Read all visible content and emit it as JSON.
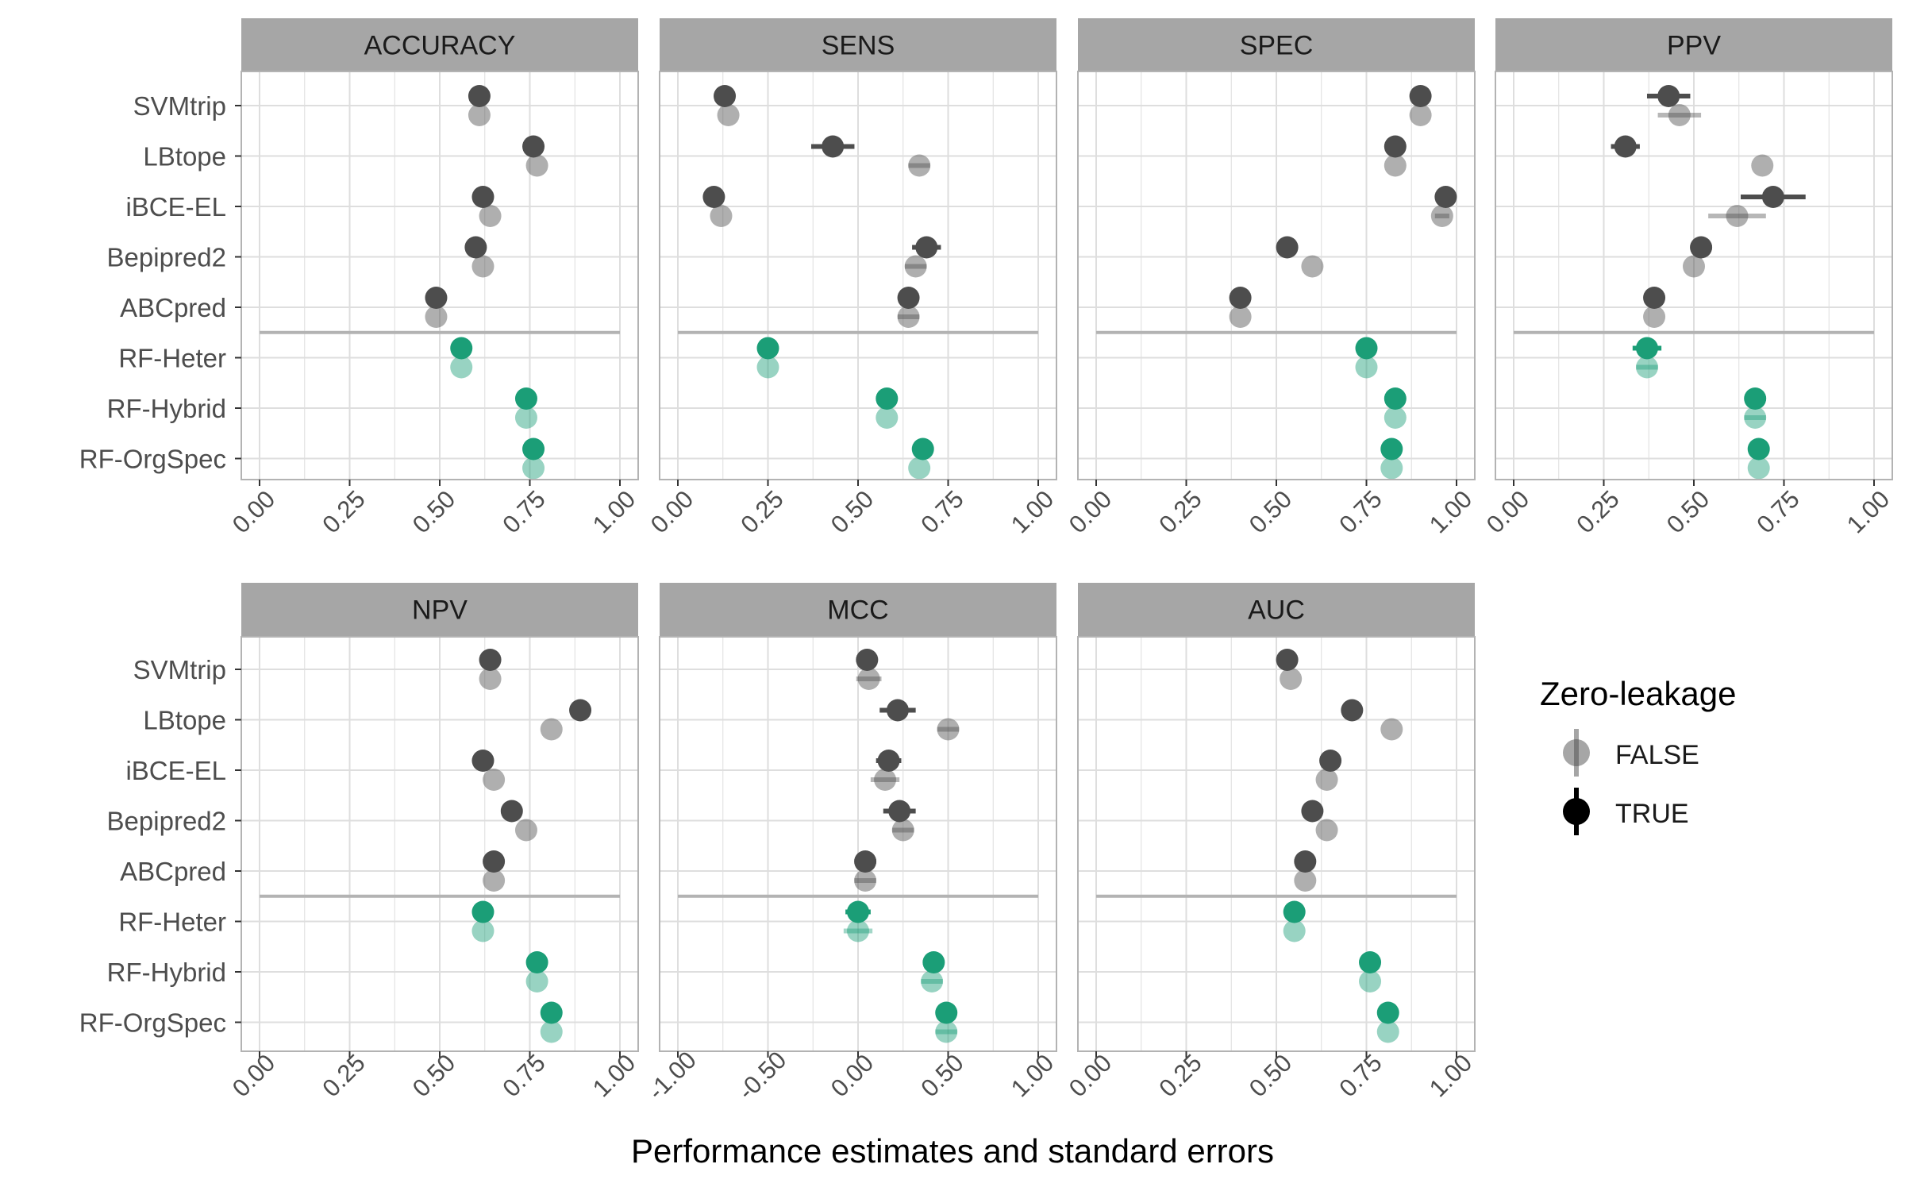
{
  "chart_data": {
    "type": "scatter",
    "xlabel": "Performance estimates and standard errors",
    "categories": [
      "SVMtrip",
      "LBtope",
      "iBCE-EL",
      "Bepipred2",
      "ABCpred",
      "RF-Heter",
      "RF-Hybrid",
      "RF-OrgSpec"
    ],
    "groups": {
      "reference": [
        "SVMtrip",
        "LBtope",
        "iBCE-EL",
        "Bepipred2",
        "ABCpred"
      ],
      "proposed": [
        "RF-Heter",
        "RF-Hybrid",
        "RF-OrgSpec"
      ]
    },
    "colors": {
      "reference": "#4d4d4d",
      "proposed": "#1b9e77",
      "strip": "#a6a6a6",
      "grid": "#dedede"
    },
    "legend": {
      "title": "Zero-leakage",
      "entries": [
        "FALSE",
        "TRUE"
      ],
      "position": "right"
    },
    "panels": [
      {
        "name": "ACCURACY",
        "xlim": [
          0,
          1
        ],
        "ticks": [
          "0.00",
          "0.25",
          "0.50",
          "0.75",
          "1.00"
        ],
        "true": [
          {
            "v": 0.61,
            "se": 0.0
          },
          {
            "v": 0.76,
            "se": 0.0
          },
          {
            "v": 0.62,
            "se": 0.0
          },
          {
            "v": 0.6,
            "se": 0.0
          },
          {
            "v": 0.49,
            "se": 0.0
          },
          {
            "v": 0.56,
            "se": 0.0
          },
          {
            "v": 0.74,
            "se": 0.0
          },
          {
            "v": 0.76,
            "se": 0.0
          }
        ],
        "false": [
          {
            "v": 0.61,
            "se": 0.0
          },
          {
            "v": 0.77,
            "se": 0.0
          },
          {
            "v": 0.64,
            "se": 0.0
          },
          {
            "v": 0.62,
            "se": 0.0
          },
          {
            "v": 0.49,
            "se": 0.0
          },
          {
            "v": 0.56,
            "se": 0.0
          },
          {
            "v": 0.74,
            "se": 0.0
          },
          {
            "v": 0.76,
            "se": 0.0
          }
        ]
      },
      {
        "name": "SENS",
        "xlim": [
          0,
          1
        ],
        "ticks": [
          "0.00",
          "0.25",
          "0.50",
          "0.75",
          "1.00"
        ],
        "true": [
          {
            "v": 0.13,
            "se": 0.0
          },
          {
            "v": 0.43,
            "se": 0.06
          },
          {
            "v": 0.1,
            "se": 0.0
          },
          {
            "v": 0.69,
            "se": 0.04
          },
          {
            "v": 0.64,
            "se": 0.02
          },
          {
            "v": 0.25,
            "se": 0.0
          },
          {
            "v": 0.58,
            "se": 0.0
          },
          {
            "v": 0.68,
            "se": 0.0
          }
        ],
        "false": [
          {
            "v": 0.14,
            "se": 0.0
          },
          {
            "v": 0.67,
            "se": 0.03
          },
          {
            "v": 0.12,
            "se": 0.0
          },
          {
            "v": 0.66,
            "se": 0.03
          },
          {
            "v": 0.64,
            "se": 0.03
          },
          {
            "v": 0.25,
            "se": 0.0
          },
          {
            "v": 0.58,
            "se": 0.0
          },
          {
            "v": 0.67,
            "se": 0.0
          }
        ]
      },
      {
        "name": "SPEC",
        "xlim": [
          0,
          1
        ],
        "ticks": [
          "0.00",
          "0.25",
          "0.50",
          "0.75",
          "1.00"
        ],
        "true": [
          {
            "v": 0.9,
            "se": 0.0
          },
          {
            "v": 0.83,
            "se": 0.0
          },
          {
            "v": 0.97,
            "se": 0.0
          },
          {
            "v": 0.53,
            "se": 0.0
          },
          {
            "v": 0.4,
            "se": 0.0
          },
          {
            "v": 0.75,
            "se": 0.0
          },
          {
            "v": 0.83,
            "se": 0.0
          },
          {
            "v": 0.82,
            "se": 0.0
          }
        ],
        "false": [
          {
            "v": 0.9,
            "se": 0.0
          },
          {
            "v": 0.83,
            "se": 0.0
          },
          {
            "v": 0.96,
            "se": 0.02
          },
          {
            "v": 0.6,
            "se": 0.0
          },
          {
            "v": 0.4,
            "se": 0.0
          },
          {
            "v": 0.75,
            "se": 0.0
          },
          {
            "v": 0.83,
            "se": 0.0
          },
          {
            "v": 0.82,
            "se": 0.0
          }
        ]
      },
      {
        "name": "PPV",
        "xlim": [
          0,
          1
        ],
        "ticks": [
          "0.00",
          "0.25",
          "0.50",
          "0.75",
          "1.00"
        ],
        "true": [
          {
            "v": 0.43,
            "se": 0.06
          },
          {
            "v": 0.31,
            "se": 0.04
          },
          {
            "v": 0.72,
            "se": 0.09
          },
          {
            "v": 0.52,
            "se": 0.03
          },
          {
            "v": 0.39,
            "se": 0.0
          },
          {
            "v": 0.37,
            "se": 0.04
          },
          {
            "v": 0.67,
            "se": 0.03
          },
          {
            "v": 0.68,
            "se": 0.0
          }
        ],
        "false": [
          {
            "v": 0.46,
            "se": 0.06
          },
          {
            "v": 0.69,
            "se": 0.0
          },
          {
            "v": 0.62,
            "se": 0.08
          },
          {
            "v": 0.5,
            "se": 0.0
          },
          {
            "v": 0.39,
            "se": 0.0
          },
          {
            "v": 0.37,
            "se": 0.03
          },
          {
            "v": 0.67,
            "se": 0.03
          },
          {
            "v": 0.68,
            "se": 0.0
          }
        ]
      },
      {
        "name": "NPV",
        "xlim": [
          0,
          1
        ],
        "ticks": [
          "0.00",
          "0.25",
          "0.50",
          "0.75",
          "1.00"
        ],
        "true": [
          {
            "v": 0.64,
            "se": 0.0
          },
          {
            "v": 0.89,
            "se": 0.0
          },
          {
            "v": 0.62,
            "se": 0.0
          },
          {
            "v": 0.7,
            "se": 0.03
          },
          {
            "v": 0.65,
            "se": 0.0
          },
          {
            "v": 0.62,
            "se": 0.0
          },
          {
            "v": 0.77,
            "se": 0.0
          },
          {
            "v": 0.81,
            "se": 0.0
          }
        ],
        "false": [
          {
            "v": 0.64,
            "se": 0.0
          },
          {
            "v": 0.81,
            "se": 0.0
          },
          {
            "v": 0.65,
            "se": 0.0
          },
          {
            "v": 0.74,
            "se": 0.0
          },
          {
            "v": 0.65,
            "se": 0.0
          },
          {
            "v": 0.62,
            "se": 0.0
          },
          {
            "v": 0.77,
            "se": 0.0
          },
          {
            "v": 0.81,
            "se": 0.0
          }
        ]
      },
      {
        "name": "MCC",
        "xlim": [
          -1,
          1
        ],
        "ticks": [
          "-1.00",
          "-0.50",
          "0.00",
          "0.50",
          "1.00"
        ],
        "true": [
          {
            "v": 0.05,
            "se": 0.06
          },
          {
            "v": 0.22,
            "se": 0.1
          },
          {
            "v": 0.17,
            "se": 0.07
          },
          {
            "v": 0.23,
            "se": 0.09
          },
          {
            "v": 0.04,
            "se": 0.06
          },
          {
            "v": 0.0,
            "se": 0.07
          },
          {
            "v": 0.42,
            "se": 0.06
          },
          {
            "v": 0.49,
            "se": 0.06
          }
        ],
        "false": [
          {
            "v": 0.06,
            "se": 0.07
          },
          {
            "v": 0.5,
            "se": 0.06
          },
          {
            "v": 0.15,
            "se": 0.08
          },
          {
            "v": 0.25,
            "se": 0.06
          },
          {
            "v": 0.04,
            "se": 0.06
          },
          {
            "v": 0.0,
            "se": 0.08
          },
          {
            "v": 0.41,
            "se": 0.06
          },
          {
            "v": 0.49,
            "se": 0.06
          }
        ]
      },
      {
        "name": "AUC",
        "xlim": [
          0,
          1
        ],
        "ticks": [
          "0.00",
          "0.25",
          "0.50",
          "0.75",
          "1.00"
        ],
        "true": [
          {
            "v": 0.53,
            "se": 0.0
          },
          {
            "v": 0.71,
            "se": 0.03
          },
          {
            "v": 0.65,
            "se": 0.0
          },
          {
            "v": 0.6,
            "se": 0.0
          },
          {
            "v": 0.58,
            "se": 0.0
          },
          {
            "v": 0.55,
            "se": 0.0
          },
          {
            "v": 0.76,
            "se": 0.0
          },
          {
            "v": 0.81,
            "se": 0.0
          }
        ],
        "false": [
          {
            "v": 0.54,
            "se": 0.0
          },
          {
            "v": 0.82,
            "se": 0.0
          },
          {
            "v": 0.64,
            "se": 0.0
          },
          {
            "v": 0.64,
            "se": 0.0
          },
          {
            "v": 0.58,
            "se": 0.0
          },
          {
            "v": 0.55,
            "se": 0.0
          },
          {
            "v": 0.76,
            "se": 0.0
          },
          {
            "v": 0.81,
            "se": 0.0
          }
        ]
      }
    ]
  }
}
